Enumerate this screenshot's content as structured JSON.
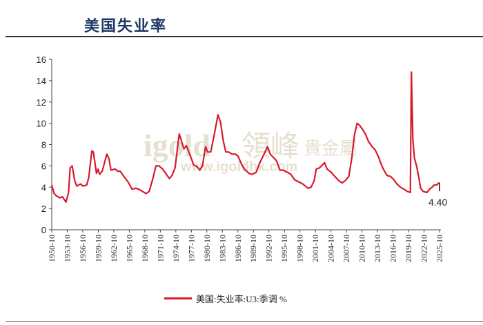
{
  "title": "美国失业率",
  "watermark": {
    "brand": "igold",
    "cn": "領峰",
    "sub": "貴金屬",
    "url": "www.igoldhk.com"
  },
  "chart_data": {
    "type": "line",
    "title": "美国失业率",
    "xlabel": "",
    "ylabel": "",
    "ylim": [
      0,
      16
    ],
    "yticks": [
      "0",
      "2",
      "4",
      "6",
      "8",
      "10",
      "12",
      "14",
      "16"
    ],
    "xticks": [
      "1950-10",
      "1953-10",
      "1956-10",
      "1959-10",
      "1962-10",
      "1965-10",
      "1968-10",
      "1971-10",
      "1974-10",
      "1977-10",
      "1980-10",
      "1983-10",
      "1986-10",
      "1989-10",
      "1992-10",
      "1995-10",
      "1998-10",
      "2001-10",
      "2004-10",
      "2007-10",
      "2010-10",
      "2013-10",
      "2016-10",
      "2019-10",
      "2022-10",
      "2025-10"
    ],
    "grid": false,
    "legend_position": "bottom",
    "color": "#d7192a",
    "last_value_label": "4.40",
    "series": [
      {
        "name": "美国:失业率:U3:季调 %",
        "points": [
          [
            1950.75,
            4.2
          ],
          [
            1951.2,
            3.4
          ],
          [
            1951.6,
            3.2
          ],
          [
            1952.3,
            3.0
          ],
          [
            1952.8,
            3.1
          ],
          [
            1953.5,
            2.6
          ],
          [
            1954.0,
            3.5
          ],
          [
            1954.3,
            5.8
          ],
          [
            1954.7,
            6.0
          ],
          [
            1955.2,
            4.6
          ],
          [
            1955.6,
            4.1
          ],
          [
            1956.3,
            4.3
          ],
          [
            1956.8,
            4.1
          ],
          [
            1957.5,
            4.2
          ],
          [
            1957.9,
            4.9
          ],
          [
            1958.5,
            7.4
          ],
          [
            1958.8,
            7.3
          ],
          [
            1959.4,
            5.3
          ],
          [
            1959.7,
            5.7
          ],
          [
            1960.0,
            5.2
          ],
          [
            1960.5,
            5.5
          ],
          [
            1961.4,
            7.1
          ],
          [
            1961.8,
            6.7
          ],
          [
            1962.2,
            5.6
          ],
          [
            1963.0,
            5.7
          ],
          [
            1963.5,
            5.5
          ],
          [
            1964.0,
            5.5
          ],
          [
            1964.7,
            5.0
          ],
          [
            1965.5,
            4.5
          ],
          [
            1966.3,
            3.8
          ],
          [
            1967.0,
            3.9
          ],
          [
            1967.6,
            3.8
          ],
          [
            1968.3,
            3.6
          ],
          [
            1969.0,
            3.4
          ],
          [
            1969.6,
            3.6
          ],
          [
            1970.3,
            4.8
          ],
          [
            1970.9,
            6.0
          ],
          [
            1971.5,
            6.0
          ],
          [
            1972.2,
            5.7
          ],
          [
            1972.8,
            5.3
          ],
          [
            1973.5,
            4.8
          ],
          [
            1974.0,
            5.1
          ],
          [
            1974.6,
            5.8
          ],
          [
            1975.4,
            9.0
          ],
          [
            1975.8,
            8.4
          ],
          [
            1976.3,
            7.6
          ],
          [
            1976.8,
            7.9
          ],
          [
            1977.5,
            7.0
          ],
          [
            1978.2,
            6.1
          ],
          [
            1978.9,
            5.9
          ],
          [
            1979.4,
            5.6
          ],
          [
            1979.9,
            6.0
          ],
          [
            1980.5,
            7.8
          ],
          [
            1980.9,
            7.3
          ],
          [
            1981.5,
            7.3
          ],
          [
            1982.2,
            9.0
          ],
          [
            1982.9,
            10.8
          ],
          [
            1983.4,
            10.1
          ],
          [
            1983.9,
            8.4
          ],
          [
            1984.4,
            7.3
          ],
          [
            1985.0,
            7.3
          ],
          [
            1985.6,
            7.1
          ],
          [
            1986.3,
            7.1
          ],
          [
            1986.8,
            6.9
          ],
          [
            1987.5,
            6.1
          ],
          [
            1988.2,
            5.6
          ],
          [
            1988.9,
            5.3
          ],
          [
            1989.5,
            5.2
          ],
          [
            1990.3,
            5.4
          ],
          [
            1990.9,
            6.2
          ],
          [
            1991.5,
            6.8
          ],
          [
            1992.5,
            7.8
          ],
          [
            1993.0,
            7.1
          ],
          [
            1993.6,
            6.8
          ],
          [
            1994.2,
            6.5
          ],
          [
            1994.9,
            5.6
          ],
          [
            1995.5,
            5.6
          ],
          [
            1996.3,
            5.4
          ],
          [
            1997.0,
            5.2
          ],
          [
            1997.7,
            4.7
          ],
          [
            1998.5,
            4.5
          ],
          [
            1999.3,
            4.3
          ],
          [
            2000.3,
            3.9
          ],
          [
            2000.9,
            4.0
          ],
          [
            2001.5,
            4.6
          ],
          [
            2001.9,
            5.7
          ],
          [
            2002.5,
            5.8
          ],
          [
            2003.5,
            6.3
          ],
          [
            2004.0,
            5.7
          ],
          [
            2004.8,
            5.4
          ],
          [
            2005.5,
            5.0
          ],
          [
            2006.3,
            4.6
          ],
          [
            2006.9,
            4.4
          ],
          [
            2007.5,
            4.6
          ],
          [
            2008.2,
            5.0
          ],
          [
            2008.8,
            6.8
          ],
          [
            2009.3,
            8.9
          ],
          [
            2009.8,
            10.0
          ],
          [
            2010.3,
            9.8
          ],
          [
            2010.9,
            9.4
          ],
          [
            2011.4,
            9.0
          ],
          [
            2012.0,
            8.3
          ],
          [
            2012.7,
            7.8
          ],
          [
            2013.3,
            7.5
          ],
          [
            2013.9,
            6.9
          ],
          [
            2014.5,
            6.1
          ],
          [
            2015.0,
            5.6
          ],
          [
            2015.6,
            5.1
          ],
          [
            2016.3,
            5.0
          ],
          [
            2016.9,
            4.7
          ],
          [
            2017.5,
            4.3
          ],
          [
            2018.2,
            4.0
          ],
          [
            2018.9,
            3.8
          ],
          [
            2019.5,
            3.6
          ],
          [
            2020.1,
            3.5
          ],
          [
            2020.3,
            14.8
          ],
          [
            2020.6,
            8.4
          ],
          [
            2020.9,
            6.7
          ],
          [
            2021.3,
            6.0
          ],
          [
            2021.7,
            5.0
          ],
          [
            2022.1,
            3.9
          ],
          [
            2022.6,
            3.6
          ],
          [
            2023.3,
            3.5
          ],
          [
            2023.8,
            3.8
          ],
          [
            2024.3,
            4.0
          ],
          [
            2024.7,
            4.2
          ],
          [
            2025.2,
            4.2
          ],
          [
            2025.6,
            4.4
          ],
          [
            2025.75,
            4.4
          ]
        ]
      }
    ]
  }
}
